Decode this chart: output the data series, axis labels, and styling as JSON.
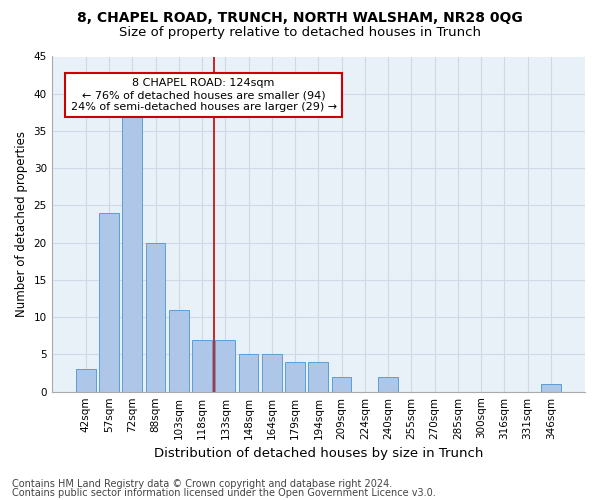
{
  "title1": "8, CHAPEL ROAD, TRUNCH, NORTH WALSHAM, NR28 0QG",
  "title2": "Size of property relative to detached houses in Trunch",
  "xlabel": "Distribution of detached houses by size in Trunch",
  "ylabel": "Number of detached properties",
  "categories": [
    "42sqm",
    "57sqm",
    "72sqm",
    "88sqm",
    "103sqm",
    "118sqm",
    "133sqm",
    "148sqm",
    "164sqm",
    "179sqm",
    "194sqm",
    "209sqm",
    "224sqm",
    "240sqm",
    "255sqm",
    "270sqm",
    "285sqm",
    "300sqm",
    "316sqm",
    "331sqm",
    "346sqm"
  ],
  "values": [
    3,
    24,
    37,
    20,
    11,
    7,
    7,
    5,
    5,
    4,
    4,
    2,
    0,
    2,
    0,
    0,
    0,
    0,
    0,
    0,
    1
  ],
  "bar_color": "#aec6e8",
  "bar_edge_color": "#5a9fd4",
  "grid_color": "#d0d8e8",
  "background_color": "#e8f0f8",
  "vline_x": 5.5,
  "vline_color": "#cc0000",
  "annotation_text": "8 CHAPEL ROAD: 124sqm\n← 76% of detached houses are smaller (94)\n24% of semi-detached houses are larger (29) →",
  "annotation_box_color": "#ffffff",
  "annotation_box_edge": "#cc0000",
  "footer1": "Contains HM Land Registry data © Crown copyright and database right 2024.",
  "footer2": "Contains public sector information licensed under the Open Government Licence v3.0.",
  "ylim": [
    0,
    45
  ],
  "yticks": [
    0,
    5,
    10,
    15,
    20,
    25,
    30,
    35,
    40,
    45
  ],
  "title1_fontsize": 10,
  "title2_fontsize": 9.5,
  "xlabel_fontsize": 9.5,
  "ylabel_fontsize": 8.5,
  "tick_fontsize": 7.5,
  "annot_fontsize": 8,
  "footer_fontsize": 7
}
